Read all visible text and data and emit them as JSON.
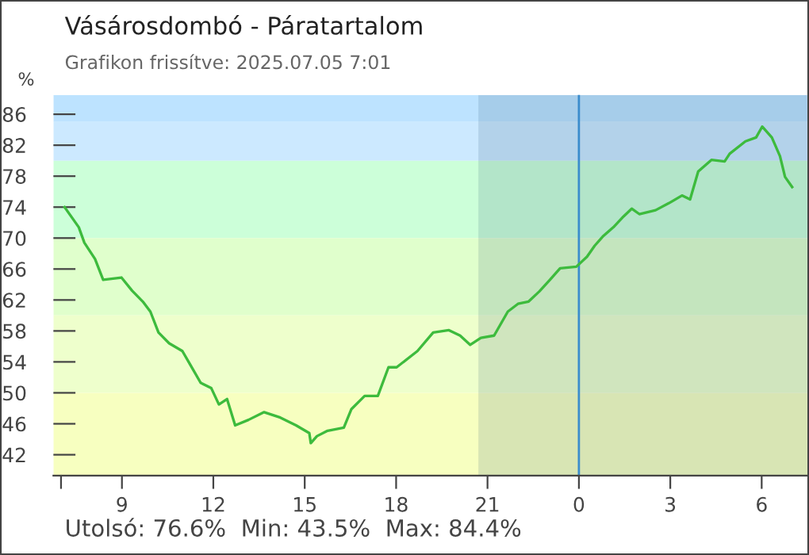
{
  "chart_data": {
    "type": "line",
    "title": "Vásárosdombó - Páratartalom",
    "subtitle": "Grafikon frissítve: 2025.07.05 7:01",
    "ylabel": "%",
    "annotations": [
      "Utolsó: 76.6%  Min: 43.5%  Max: 84.4%"
    ],
    "x": [
      "2025-07-04T07:07",
      "2025-07-04T07:35",
      "2025-07-04T07:46",
      "2025-07-04T08:07",
      "2025-07-04T08:23",
      "2025-07-04T08:59",
      "2025-07-04T09:20",
      "2025-07-04T09:41",
      "2025-07-04T09:56",
      "2025-07-04T10:12",
      "2025-07-04T10:33",
      "2025-07-04T10:59",
      "2025-07-04T11:14",
      "2025-07-04T11:35",
      "2025-07-04T11:56",
      "2025-07-04T12:11",
      "2025-07-04T12:27",
      "2025-07-04T12:43",
      "2025-07-04T13:09",
      "2025-07-04T13:40",
      "2025-07-04T14:12",
      "2025-07-04T14:43",
      "2025-07-04T15:09",
      "2025-07-04T15:12",
      "2025-07-04T15:24",
      "2025-07-04T15:45",
      "2025-07-04T16:17",
      "2025-07-04T16:32",
      "2025-07-04T16:58",
      "2025-07-04T17:24",
      "2025-07-04T17:45",
      "2025-07-04T18:01",
      "2025-07-04T18:42",
      "2025-07-04T19:13",
      "2025-07-04T19:44",
      "2025-07-04T20:06",
      "2025-07-04T20:26",
      "2025-07-04T20:47",
      "2025-07-04T21:13",
      "2025-07-04T21:40",
      "2025-07-04T22:00",
      "2025-07-04T22:21",
      "2025-07-04T22:42",
      "2025-07-04T23:03",
      "2025-07-04T23:23",
      "2025-07-04T23:55",
      "2025-07-05T00:16",
      "2025-07-05T00:31",
      "2025-07-05T00:47",
      "2025-07-05T01:08",
      "2025-07-05T01:28",
      "2025-07-05T01:44",
      "2025-07-05T01:59",
      "2025-07-05T02:31",
      "2025-07-05T02:57",
      "2025-07-05T03:23",
      "2025-07-05T03:39",
      "2025-07-05T03:55",
      "2025-07-05T04:21",
      "2025-07-05T04:47",
      "2025-07-05T04:57",
      "2025-07-05T05:28",
      "2025-07-05T05:49",
      "2025-07-05T06:01",
      "2025-07-05T06:20",
      "2025-07-05T06:36",
      "2025-07-05T06:46",
      "2025-07-05T07:00"
    ],
    "series": [
      {
        "color": "#3dbb3d",
        "values": [
          74.0,
          71.4,
          69.4,
          67.3,
          64.6,
          64.9,
          63.2,
          61.8,
          60.5,
          57.8,
          56.4,
          55.4,
          53.7,
          51.3,
          50.6,
          48.5,
          49.2,
          45.8,
          46.5,
          47.5,
          46.8,
          45.8,
          44.8,
          43.5,
          44.4,
          45.1,
          45.5,
          47.9,
          49.6,
          49.6,
          53.3,
          53.3,
          55.4,
          57.8,
          58.1,
          57.4,
          56.2,
          57.1,
          57.4,
          60.5,
          61.5,
          61.8,
          63.1,
          64.6,
          66.1,
          66.3,
          67.6,
          69.0,
          70.2,
          71.4,
          72.8,
          73.8,
          73.1,
          73.6,
          74.5,
          75.5,
          75.0,
          78.6,
          80.1,
          79.9,
          80.9,
          82.5,
          83.0,
          84.4,
          83.0,
          80.6,
          77.9,
          76.6
        ]
      }
    ],
    "xlim": [
      "2025-07-04T06:45",
      "2025-07-05T07:30"
    ],
    "xticks": [
      {
        "value": "2025-07-04T07:00",
        "label": null
      },
      {
        "value": "2025-07-04T09:00",
        "label": "9"
      },
      {
        "value": "2025-07-04T12:00",
        "label": "12"
      },
      {
        "value": "2025-07-04T15:00",
        "label": "15"
      },
      {
        "value": "2025-07-04T18:00",
        "label": "18"
      },
      {
        "value": "2025-07-04T21:00",
        "label": "21"
      },
      {
        "value": "2025-07-05T00:00",
        "label": "0"
      },
      {
        "value": "2025-07-05T03:00",
        "label": "3"
      },
      {
        "value": "2025-07-05T06:00",
        "label": "6"
      }
    ],
    "ylim": [
      39.3,
      88.5
    ],
    "yticks": [
      42,
      46,
      50,
      54,
      58,
      62,
      66,
      70,
      74,
      78,
      82,
      86
    ],
    "bands": [
      {
        "axis": "y",
        "from": 85,
        "to": 88.5,
        "label": null,
        "color": "#bde3ff"
      },
      {
        "axis": "y",
        "from": 80,
        "to": 85,
        "label": null,
        "color": "#cce9ff"
      },
      {
        "axis": "y",
        "from": 70,
        "to": 80,
        "label": null,
        "color": "#ccffd9"
      },
      {
        "axis": "y",
        "from": 60,
        "to": 70,
        "label": null,
        "color": "#e0ffcc"
      },
      {
        "axis": "y",
        "from": 50,
        "to": 60,
        "label": null,
        "color": "#eeffcc"
      },
      {
        "axis": "y",
        "from": 39.3,
        "to": 50,
        "label": null,
        "color": "#f7ffc0"
      },
      {
        "axis": "x",
        "from": "2025-07-04T20:42",
        "to": "2025-07-05T07:30",
        "label": null,
        "color": "#2a5070"
      }
    ],
    "ref_lines": [
      {
        "axis": "x",
        "value": "2025-07-05T00:00",
        "label": null,
        "color": "#3a8ccc"
      }
    ],
    "grid": false,
    "legend": false,
    "marker": "none",
    "line_style": "solid"
  }
}
